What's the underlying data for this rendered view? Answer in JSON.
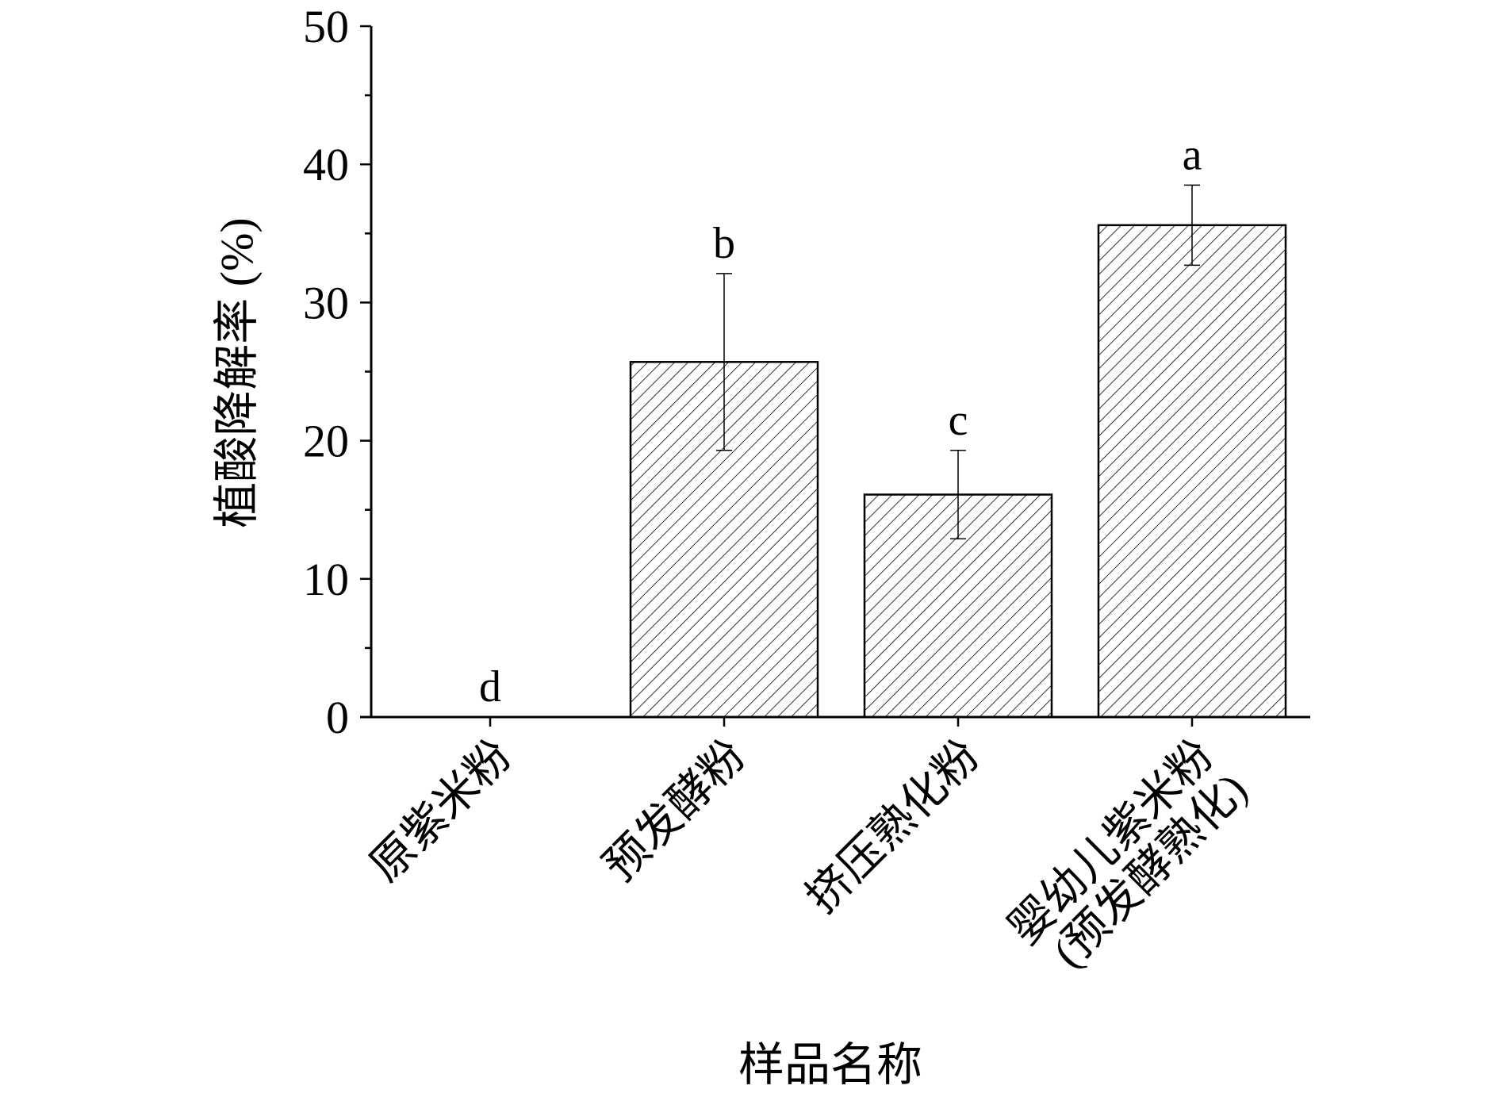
{
  "chart_data": {
    "type": "bar",
    "title": "",
    "xlabel": "样品名称",
    "ylabel": "植酸降解率 (%)",
    "ylim": [
      0,
      50
    ],
    "yticks": [
      0,
      10,
      20,
      30,
      40,
      50
    ],
    "grid": false,
    "fill_pattern": "diagonal-hatch",
    "bar_color": "#ffffff",
    "hatch_color": "#000000",
    "categories": [
      [
        "原紫米粉"
      ],
      [
        "预发酵粉"
      ],
      [
        "挤压熟化粉"
      ],
      [
        "婴幼儿紫米粉",
        "(预发酵熟化)"
      ]
    ],
    "values": [
      0,
      25.7,
      16.1,
      35.6
    ],
    "errors": [
      0,
      6.4,
      3.2,
      2.9
    ],
    "significance": [
      "d",
      "b",
      "c",
      "a"
    ]
  }
}
